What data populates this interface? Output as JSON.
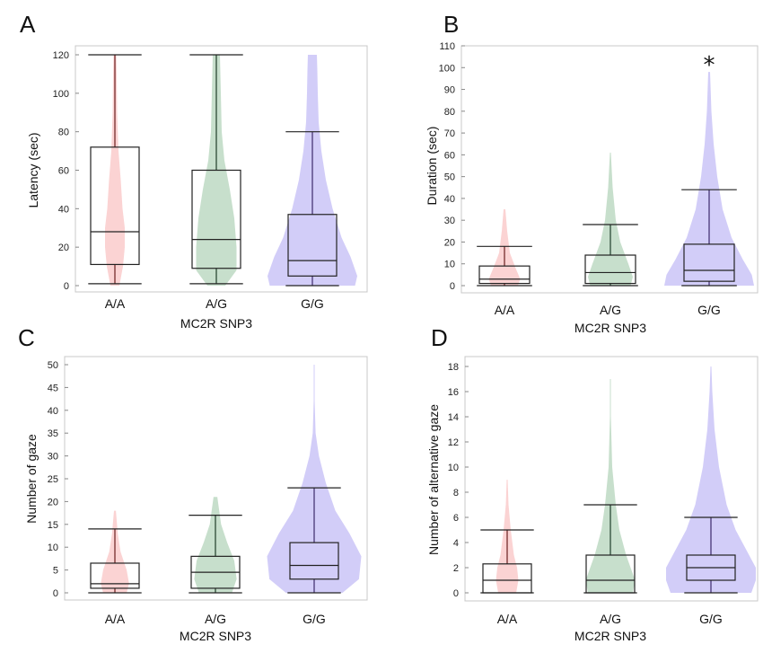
{
  "chart_data": [
    {
      "panel": "A",
      "type": "box",
      "categories": [
        "A/A",
        "A/G",
        "G/G"
      ],
      "xlabel": "MC2R SNP3",
      "ylabel": "Latency (sec)",
      "ylim": [
        0,
        120
      ],
      "ticks": [
        0,
        20,
        40,
        60,
        80,
        100,
        120
      ],
      "colors": [
        "#f7a8a8",
        "#8fbf9a",
        "#a59cf2"
      ],
      "boxes": [
        {
          "min": 1,
          "q1": 11,
          "median": 28,
          "q3": 72,
          "max": 120
        },
        {
          "min": 1,
          "q1": 9,
          "median": 24,
          "q3": 60,
          "max": 120
        },
        {
          "min": 0,
          "q1": 5,
          "median": 13,
          "q3": 37,
          "max": 80
        }
      ],
      "violins": [
        [
          [
            0,
            0.1
          ],
          [
            10,
            0.18
          ],
          [
            20,
            0.22
          ],
          [
            30,
            0.22
          ],
          [
            40,
            0.17
          ],
          [
            55,
            0.13
          ],
          [
            70,
            0.08
          ],
          [
            90,
            0.05
          ],
          [
            110,
            0.04
          ],
          [
            120,
            0.03
          ]
        ],
        [
          [
            0,
            0.2
          ],
          [
            8,
            0.45
          ],
          [
            20,
            0.45
          ],
          [
            35,
            0.4
          ],
          [
            50,
            0.3
          ],
          [
            65,
            0.18
          ],
          [
            80,
            0.12
          ],
          [
            100,
            0.1
          ],
          [
            120,
            0.08
          ]
        ],
        [
          [
            0,
            0.95
          ],
          [
            5,
            1
          ],
          [
            15,
            0.85
          ],
          [
            25,
            0.65
          ],
          [
            40,
            0.45
          ],
          [
            55,
            0.3
          ],
          [
            70,
            0.2
          ],
          [
            85,
            0.14
          ],
          [
            100,
            0.12
          ],
          [
            112,
            0.11
          ],
          [
            120,
            0.1
          ]
        ]
      ],
      "annotation": ""
    },
    {
      "panel": "B",
      "type": "box",
      "categories": [
        "A/A",
        "A/G",
        "G/G"
      ],
      "xlabel": "MC2R SNP3",
      "ylabel": "Duration (sec)",
      "ylim": [
        0,
        110
      ],
      "ticks": [
        0,
        10,
        20,
        30,
        40,
        50,
        60,
        70,
        80,
        90,
        100,
        110
      ],
      "colors": [
        "#f7a8a8",
        "#8fbf9a",
        "#a59cf2"
      ],
      "boxes": [
        {
          "min": 0,
          "q1": 1,
          "median": 3,
          "q3": 9,
          "max": 18
        },
        {
          "min": 0,
          "q1": 1,
          "median": 6,
          "q3": 14,
          "max": 28
        },
        {
          "min": 0,
          "q1": 2,
          "median": 7,
          "q3": 19,
          "max": 44
        }
      ],
      "violins": [
        [
          [
            0,
            0.3
          ],
          [
            3,
            0.35
          ],
          [
            8,
            0.25
          ],
          [
            15,
            0.12
          ],
          [
            25,
            0.06
          ],
          [
            35,
            0.02
          ]
        ],
        [
          [
            0,
            0.45
          ],
          [
            4,
            0.5
          ],
          [
            10,
            0.4
          ],
          [
            20,
            0.22
          ],
          [
            30,
            0.12
          ],
          [
            45,
            0.05
          ],
          [
            61,
            0.01
          ]
        ],
        [
          [
            0,
            1
          ],
          [
            5,
            0.95
          ],
          [
            12,
            0.75
          ],
          [
            22,
            0.5
          ],
          [
            35,
            0.3
          ],
          [
            50,
            0.18
          ],
          [
            65,
            0.1
          ],
          [
            80,
            0.05
          ],
          [
            98,
            0.02
          ]
        ]
      ],
      "annotation": "*"
    },
    {
      "panel": "C",
      "type": "box",
      "categories": [
        "A/A",
        "A/G",
        "G/G"
      ],
      "xlabel": "MC2R SNP3",
      "ylabel": "Number of gaze",
      "ylim": [
        0,
        50
      ],
      "ticks": [
        0,
        5,
        10,
        15,
        20,
        25,
        30,
        35,
        40,
        45,
        50
      ],
      "colors": [
        "#f7a8a8",
        "#8fbf9a",
        "#a59cf2"
      ],
      "boxes": [
        {
          "min": 0,
          "q1": 1,
          "median": 2,
          "q3": 6.5,
          "max": 14
        },
        {
          "min": 0,
          "q1": 1,
          "median": 4.5,
          "q3": 8,
          "max": 17
        },
        {
          "min": 0,
          "q1": 3,
          "median": 6,
          "q3": 11,
          "max": 23
        }
      ],
      "violins": [
        [
          [
            0,
            0.25
          ],
          [
            2,
            0.3
          ],
          [
            5,
            0.25
          ],
          [
            9,
            0.12
          ],
          [
            13,
            0.06
          ],
          [
            18,
            0.02
          ]
        ],
        [
          [
            0,
            0.35
          ],
          [
            3,
            0.45
          ],
          [
            7,
            0.4
          ],
          [
            11,
            0.25
          ],
          [
            15,
            0.12
          ],
          [
            21,
            0.04
          ]
        ],
        [
          [
            0,
            0.6
          ],
          [
            3,
            0.95
          ],
          [
            8,
            1
          ],
          [
            13,
            0.75
          ],
          [
            18,
            0.45
          ],
          [
            24,
            0.25
          ],
          [
            30,
            0.1
          ],
          [
            35,
            0.03
          ],
          [
            42,
            0.01
          ],
          [
            50,
            0.01
          ]
        ]
      ],
      "annotation": ""
    },
    {
      "panel": "D",
      "type": "box",
      "categories": [
        "A/A",
        "A/G",
        "G/G"
      ],
      "xlabel": "MC2R SNP3",
      "ylabel": "Number of alternative gaze",
      "ylim": [
        0,
        18
      ],
      "ticks": [
        0,
        2,
        4,
        6,
        8,
        10,
        12,
        14,
        16,
        18
      ],
      "colors": [
        "#f7a8a8",
        "#8fbf9a",
        "#a59cf2"
      ],
      "boxes": [
        {
          "min": 0,
          "q1": 0,
          "median": 1,
          "q3": 2.3,
          "max": 5
        },
        {
          "min": 0,
          "q1": 0,
          "median": 1,
          "q3": 3,
          "max": 7
        },
        {
          "min": 0,
          "q1": 1,
          "median": 2,
          "q3": 3,
          "max": 6
        }
      ],
      "violins": [
        [
          [
            0,
            0.2
          ],
          [
            1,
            0.25
          ],
          [
            2,
            0.22
          ],
          [
            3,
            0.15
          ],
          [
            5,
            0.08
          ],
          [
            7,
            0.03
          ],
          [
            9,
            0.01
          ]
        ],
        [
          [
            0,
            0.5
          ],
          [
            1,
            0.55
          ],
          [
            2,
            0.45
          ],
          [
            3,
            0.35
          ],
          [
            5,
            0.2
          ],
          [
            7,
            0.12
          ],
          [
            10,
            0.04
          ],
          [
            14,
            0.01
          ],
          [
            17,
            0.01
          ]
        ],
        [
          [
            0,
            0.9
          ],
          [
            1,
            1
          ],
          [
            2,
            1
          ],
          [
            3,
            0.85
          ],
          [
            5,
            0.55
          ],
          [
            7,
            0.35
          ],
          [
            10,
            0.18
          ],
          [
            13,
            0.08
          ],
          [
            16,
            0.03
          ],
          [
            18,
            0.01
          ]
        ]
      ],
      "annotation": ""
    }
  ]
}
